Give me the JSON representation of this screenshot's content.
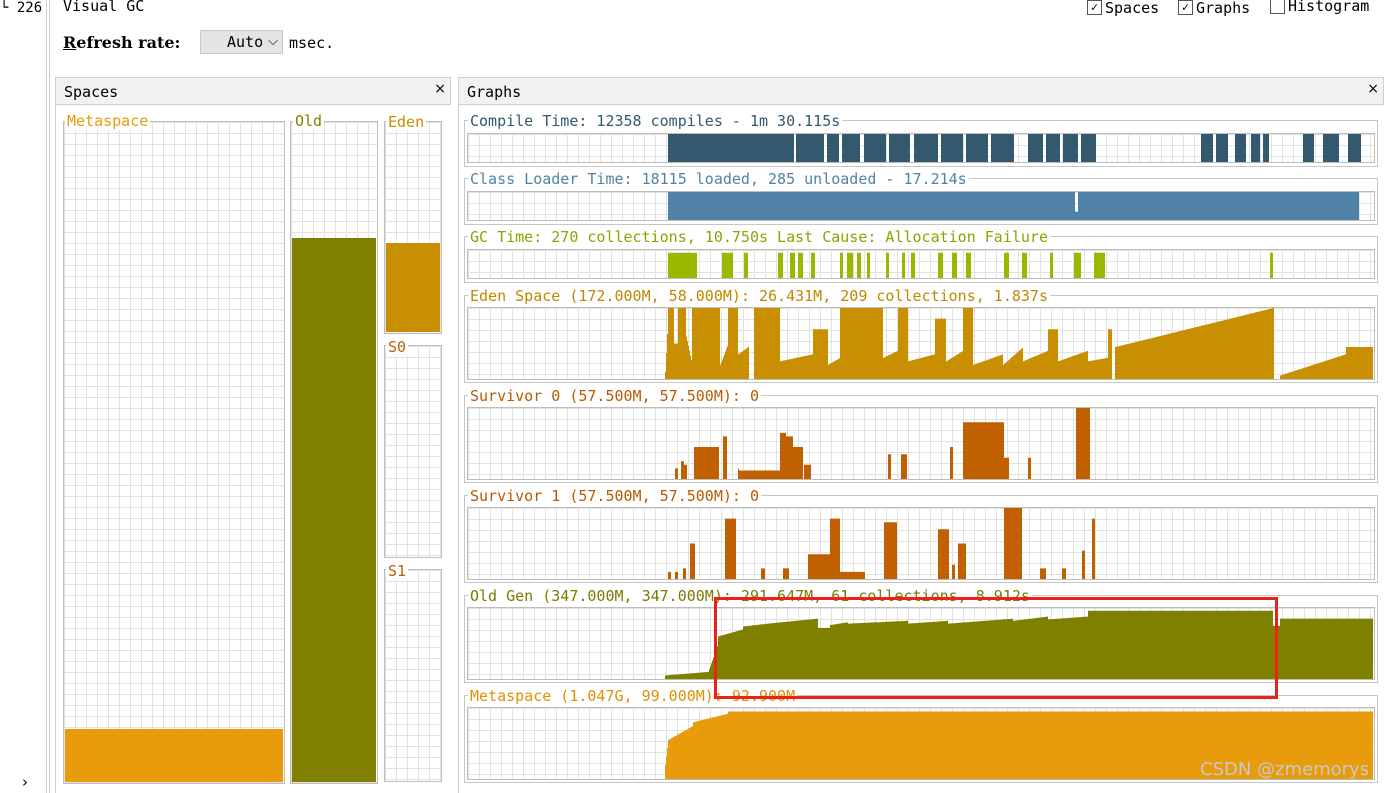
{
  "gutter": {
    "text": "└ 226",
    "arrow": "›"
  },
  "header": {
    "title": "Visual GC",
    "checkboxes": [
      {
        "label": "Spaces",
        "checked": true
      },
      {
        "label": "Graphs",
        "checked": true
      },
      {
        "label": "Histogram",
        "checked": false
      }
    ]
  },
  "refresh": {
    "label_first": "R",
    "label_rest": "efresh rate:",
    "value": "Auto",
    "unit": "msec."
  },
  "spaces_panel": {
    "title": "Spaces",
    "close": "×",
    "metaspace": {
      "label": "Metaspace",
      "color": "#e89c0c",
      "fill_fraction": 0.08
    },
    "old": {
      "label": "Old",
      "color": "#808000",
      "fill_fraction": 0.84
    },
    "eden": {
      "label": "Eden",
      "color": "#c89000",
      "fill_fraction": 0.44
    },
    "s0": {
      "label": "S0",
      "color": "#c06000",
      "fill_fraction": 0
    },
    "s1": {
      "label": "S1",
      "color": "#c06000",
      "fill_fraction": 0
    }
  },
  "graphs_panel": {
    "title": "Graphs",
    "close": "×",
    "graphs": [
      {
        "key": "compile",
        "title": "Compile Time: 12358 compiles - 1m 30.115s",
        "color": "#34586e",
        "title_color": "#34586e"
      },
      {
        "key": "classloader",
        "title": "Class Loader Time: 18115 loaded, 285 unloaded - 17.214s",
        "color": "#4f82a6",
        "title_color": "#4f82a6"
      },
      {
        "key": "gc",
        "title": "GC Time: 270 collections, 10.750s  Last Cause: Allocation Failure",
        "color": "#9ab800",
        "title_color": "#8aa500"
      },
      {
        "key": "eden",
        "title": "Eden Space (172.000M, 58.000M): 26.431M, 209 collections, 1.837s",
        "color": "#c89000",
        "title_color": "#c08800"
      },
      {
        "key": "s0",
        "title": "Survivor 0 (57.500M, 57.500M): 0",
        "color": "#c06000",
        "title_color": "#b85a00"
      },
      {
        "key": "s1",
        "title": "Survivor 1 (57.500M, 57.500M): 0",
        "color": "#c06000",
        "title_color": "#b85a00"
      },
      {
        "key": "old",
        "title": "Old Gen (347.000M, 347.000M): 291.647M, 61 collections, 8.912s",
        "color": "#808000",
        "title_color": "#7a7a00"
      },
      {
        "key": "meta",
        "title": "Metaspace (1.047G, 99.000M): 92.900M",
        "color": "#e89c0c",
        "title_color": "#e09000"
      }
    ]
  },
  "watermark": "CSDN @zmemorys"
}
